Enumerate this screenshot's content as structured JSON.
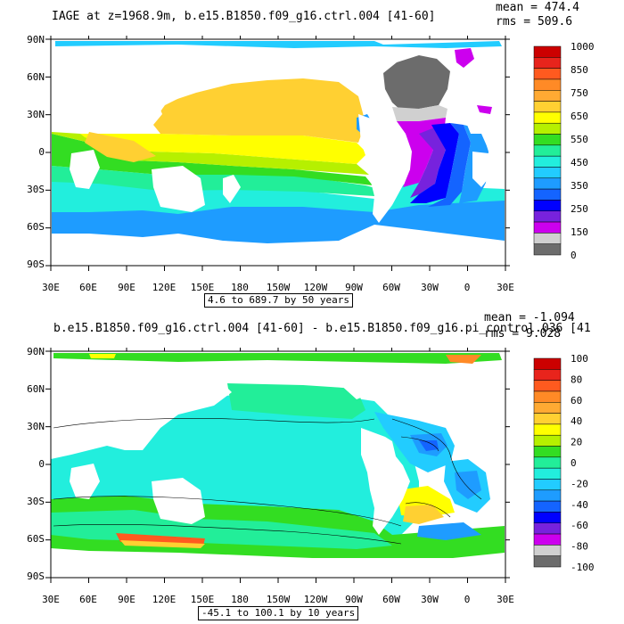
{
  "panels": [
    {
      "title": "IAGE at z=1968.9m, b.e15.B1850.f09_g16.ctrl.004 [41-60]",
      "mean_label": "mean = 474.4",
      "rms_label": "rms = 509.6",
      "range_label": "4.6 to 689.7 by 50 years",
      "colorbar_labels": [
        "1000",
        "850",
        "750",
        "650",
        "550",
        "450",
        "350",
        "250",
        "150",
        "0"
      ],
      "colors": [
        "#cc0000",
        "#e8241c",
        "#ff5a1f",
        "#ff8a26",
        "#ffaa33",
        "#ffd032",
        "#ffff00",
        "#b6f000",
        "#33dd22",
        "#22ee99",
        "#22eedd",
        "#22ccff",
        "#1e9cff",
        "#1464ff",
        "#0000ff",
        "#7722dd",
        "#cc00ee",
        "#d0d0d0",
        "#6c6c6c"
      ]
    },
    {
      "title": "b.e15.B1850.f09_g16.ctrl.004 [41-60] - b.e15.B1850.f09_g16.pi_control.036 [41",
      "mean_label": "mean = -1.094",
      "rms_label": "rms = 9.028",
      "range_label": "-45.1 to 100.1 by 10 years",
      "colorbar_labels": [
        "100",
        "80",
        "60",
        "40",
        "20",
        "0",
        "-20",
        "-40",
        "-60",
        "-80",
        "-100"
      ],
      "colors": [
        "#cc0000",
        "#e8241c",
        "#ff5a1f",
        "#ff8a26",
        "#ffaa33",
        "#ffd032",
        "#ffff00",
        "#b6f000",
        "#33dd22",
        "#22ee99",
        "#22eedd",
        "#22ccff",
        "#1e9cff",
        "#1464ff",
        "#0000ff",
        "#7722dd",
        "#cc00ee",
        "#d0d0d0",
        "#6c6c6c"
      ]
    }
  ],
  "lat_labels": [
    "90N",
    "60N",
    "30N",
    "0",
    "30S",
    "60S",
    "90S"
  ],
  "lon_labels": [
    "30E",
    "60E",
    "90E",
    "120E",
    "150E",
    "180",
    "150W",
    "120W",
    "90W",
    "60W",
    "30W",
    "0",
    "30E"
  ]
}
